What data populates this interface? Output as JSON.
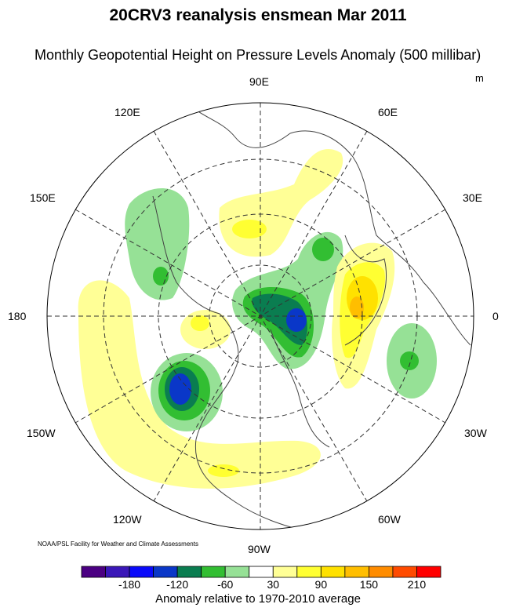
{
  "title": "20CRV3 reanalysis ensmean Mar 2011",
  "subtitle": "Monthly Geopotential Height on Pressure Levels Anomaly (500 millibar)",
  "units": "m",
  "credit": "NOAA/PSL Facility for Weather and Climate Assessments",
  "longitude_labels": {
    "e90": "90E",
    "e60": "60E",
    "e30": "30E",
    "zero": "0",
    "w30": "30W",
    "w60": "60W",
    "w90": "90W",
    "w120": "120W",
    "w150": "150W",
    "d180": "180",
    "e150": "150E",
    "e120": "120E"
  },
  "colorbar": {
    "title": "Anomaly relative to 1970-2010 average",
    "colors": [
      "#4b0082",
      "#3a17b8",
      "#0a0afa",
      "#0a37c8",
      "#0a7d50",
      "#32be32",
      "#96e196",
      "#ffffff",
      "#ffff96",
      "#ffff32",
      "#ffe100",
      "#ffbe00",
      "#ff8c00",
      "#ff4b00",
      "#ff0000"
    ],
    "boundaries": [
      -210,
      -180,
      -150,
      -120,
      -90,
      -60,
      -30,
      30,
      60,
      90,
      120,
      150,
      180,
      210
    ],
    "labels": [
      "-180",
      "-120",
      "-60",
      "30",
      "90",
      "150",
      "210"
    ]
  }
}
